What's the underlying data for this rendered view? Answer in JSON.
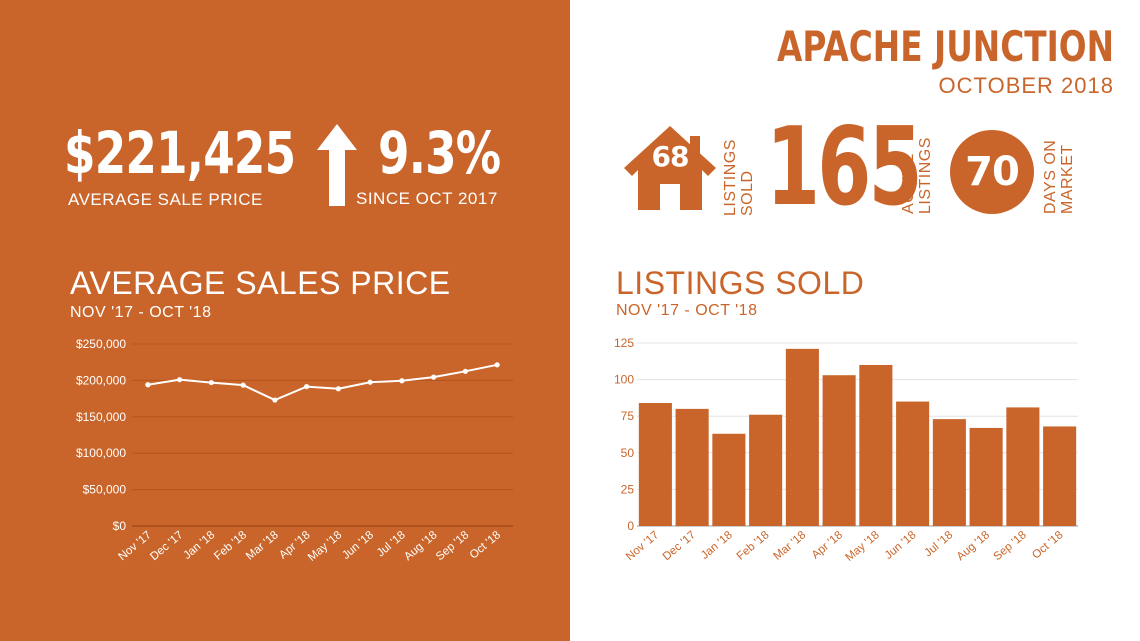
{
  "header": {
    "city": "APACHE JUNCTION",
    "month": "OCTOBER 2018"
  },
  "stats": {
    "avg_price": "$221,425",
    "avg_price_label": "AVERAGE  SALE PRICE",
    "change_pct": "9.3%",
    "change_label": "SINCE OCT 2017",
    "listings_sold": "68",
    "listings_sold_label": [
      "LISTINGS",
      "SOLD"
    ],
    "active_listings": "165",
    "active_label": [
      "ACTIVE",
      "LISTINGS"
    ],
    "days_on_market": "70",
    "dom_label": [
      "DAYS ON",
      "MARKET"
    ]
  },
  "colors": {
    "brand": "#c9652a",
    "white": "#ffffff"
  },
  "icons": {
    "house": "house-icon",
    "arrow": "arrow-up-icon"
  },
  "chart_data": [
    {
      "type": "line",
      "title": "AVERAGE SALES PRICE",
      "subtitle": "NOV '17 - OCT '18",
      "categories": [
        "Nov '17",
        "Dec '17",
        "Jan '18",
        "Feb '18",
        "Mar '18",
        "Apr '18",
        "May '18",
        "Jun '18",
        "Jul '18",
        "Aug '18",
        "Sep '18",
        "Oct '18"
      ],
      "values": [
        194000,
        201000,
        197000,
        193500,
        173000,
        191500,
        188500,
        197500,
        199500,
        204500,
        212500,
        221425
      ],
      "ylim": [
        0,
        250000
      ],
      "yticks": [
        0,
        50000,
        100000,
        150000,
        200000,
        250000
      ],
      "ytick_labels": [
        "$0",
        "$50,000",
        "$100,000",
        "$150,000",
        "$200,000",
        "$250,000"
      ],
      "grid": true
    },
    {
      "type": "bar",
      "title": "LISTINGS SOLD",
      "subtitle": "NOV '17 - OCT '18",
      "categories": [
        "Nov '17",
        "Dec '17",
        "Jan '18",
        "Feb '18",
        "Mar '18",
        "Apr '18",
        "May '18",
        "Jun '18",
        "Jul '18",
        "Aug '18",
        "Sep '18",
        "Oct '18"
      ],
      "values": [
        84,
        80,
        63,
        76,
        121,
        103,
        110,
        85,
        73,
        67,
        81,
        68
      ],
      "ylim": [
        0,
        125
      ],
      "yticks": [
        0,
        25,
        50,
        75,
        100,
        125
      ],
      "ytick_labels": [
        "0",
        "25",
        "50",
        "75",
        "100",
        "125"
      ],
      "grid": true
    }
  ]
}
